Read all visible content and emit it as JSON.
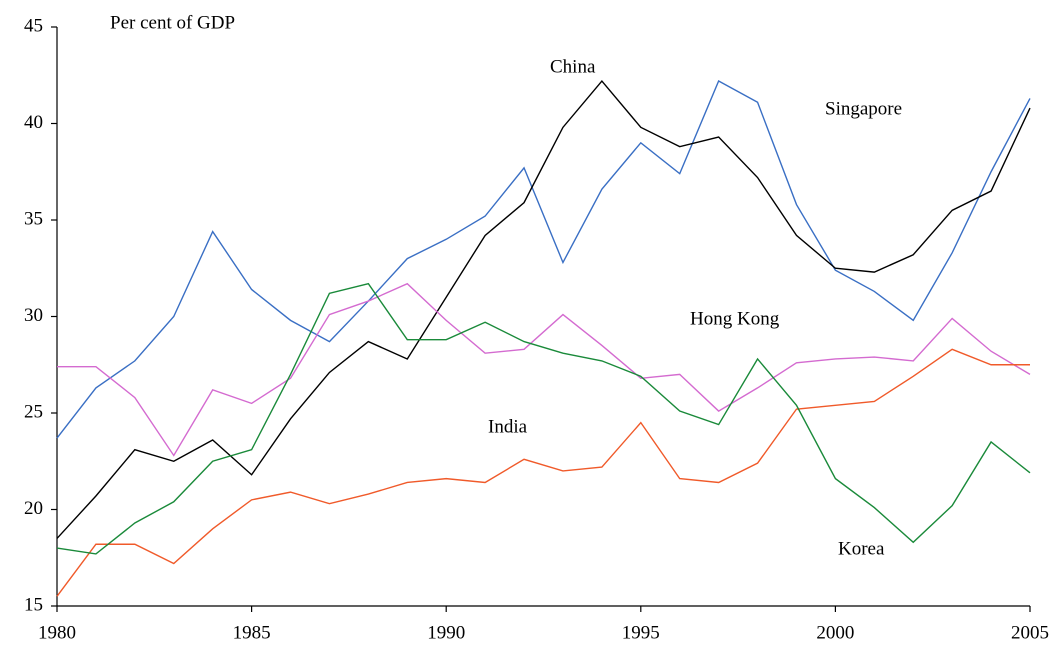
{
  "chart_data": {
    "type": "line",
    "ylabel": "Per cent of GDP",
    "x": [
      1980,
      1981,
      1982,
      1983,
      1984,
      1985,
      1986,
      1987,
      1988,
      1989,
      1990,
      1991,
      1992,
      1993,
      1994,
      1995,
      1996,
      1997,
      1998,
      1999,
      2000,
      2001,
      2002,
      2003,
      2004,
      2005
    ],
    "xlim": [
      1980,
      2005
    ],
    "xticks": [
      1980,
      1985,
      1990,
      1995,
      2000,
      2005
    ],
    "ylim": [
      15,
      45
    ],
    "yticks": [
      15,
      20,
      25,
      30,
      35,
      40,
      45
    ],
    "series": [
      {
        "name": "Singapore",
        "color": "#3a6fc4",
        "values": [
          23.7,
          26.3,
          27.7,
          30.0,
          34.4,
          31.4,
          29.8,
          28.7,
          30.8,
          33.0,
          34.0,
          35.2,
          37.7,
          32.8,
          36.6,
          39.0,
          37.4,
          42.2,
          41.1,
          35.8,
          32.4,
          31.3,
          29.8,
          33.3,
          37.5,
          41.3
        ]
      },
      {
        "name": "China",
        "color": "#000000",
        "values": [
          18.5,
          20.7,
          23.1,
          22.5,
          23.6,
          21.8,
          24.7,
          27.1,
          28.7,
          27.8,
          31.0,
          34.2,
          35.9,
          39.8,
          42.2,
          39.8,
          38.8,
          39.3,
          37.2,
          34.2,
          32.5,
          32.3,
          33.2,
          35.5,
          36.5,
          40.8
        ]
      },
      {
        "name": "Hong Kong",
        "color": "#d46bd0",
        "values": [
          27.4,
          27.4,
          25.8,
          22.8,
          26.2,
          25.5,
          26.8,
          30.1,
          30.8,
          31.7,
          29.8,
          28.1,
          28.3,
          30.1,
          28.5,
          26.8,
          27.0,
          25.1,
          26.3,
          27.6,
          27.8,
          27.9,
          27.7,
          29.9,
          28.2,
          27.0
        ]
      },
      {
        "name": "India",
        "color": "#f05a2a",
        "values": [
          15.5,
          18.2,
          18.2,
          17.2,
          19.0,
          20.5,
          20.9,
          20.3,
          20.8,
          21.4,
          21.6,
          21.4,
          22.6,
          22.0,
          22.2,
          24.5,
          21.6,
          21.4,
          22.4,
          25.2,
          25.4,
          25.6,
          26.9,
          28.3,
          27.5,
          27.5
        ]
      },
      {
        "name": "Korea",
        "color": "#1a8a3a",
        "values": [
          18.0,
          17.7,
          19.3,
          20.4,
          22.5,
          23.1,
          27.0,
          31.2,
          31.7,
          28.8,
          28.8,
          29.7,
          28.7,
          28.1,
          27.7,
          26.9,
          25.1,
          24.4,
          27.8,
          25.4,
          21.6,
          20.1,
          18.3,
          20.2,
          23.5,
          21.9
        ]
      }
    ]
  }
}
